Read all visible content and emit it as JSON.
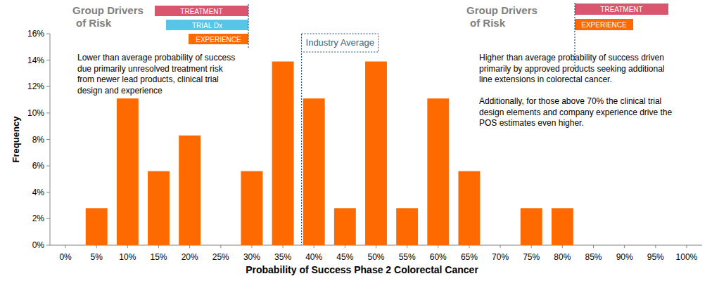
{
  "chart_data": {
    "type": "bar",
    "x_label": "Probability of Success Phase 2 Colorectal Cancer",
    "y_label": "Frequency",
    "x": [
      0,
      5,
      10,
      15,
      20,
      25,
      30,
      35,
      40,
      45,
      50,
      55,
      60,
      65,
      70,
      75,
      80,
      85,
      90,
      95,
      100
    ],
    "values": [
      0,
      2.8,
      11.1,
      5.6,
      8.3,
      0,
      5.6,
      13.9,
      11.1,
      2.8,
      13.9,
      2.8,
      11.1,
      5.6,
      0,
      2.8,
      2.8,
      0,
      0,
      0,
      0
    ],
    "color": "#ff6a00",
    "xlim": [
      -2.5,
      102.5
    ],
    "xticks": [
      {
        "value": 0,
        "label": "0%"
      },
      {
        "value": 5,
        "label": "5%"
      },
      {
        "value": 10,
        "label": "10%"
      },
      {
        "value": 15,
        "label": "15%"
      },
      {
        "value": 20,
        "label": "20%"
      },
      {
        "value": 25,
        "label": "25%"
      },
      {
        "value": 30,
        "label": "30%"
      },
      {
        "value": 35,
        "label": "35%"
      },
      {
        "value": 40,
        "label": "40%"
      },
      {
        "value": 45,
        "label": "45%"
      },
      {
        "value": 50,
        "label": "50%"
      },
      {
        "value": 55,
        "label": "55%"
      },
      {
        "value": 60,
        "label": "60%"
      },
      {
        "value": 65,
        "label": "65%"
      },
      {
        "value": 70,
        "label": "70%"
      },
      {
        "value": 75,
        "label": "75%"
      },
      {
        "value": 80,
        "label": "80%"
      },
      {
        "value": 85,
        "label": "85%"
      },
      {
        "value": 90,
        "label": "90%"
      },
      {
        "value": 95,
        "label": "95%"
      },
      {
        "value": 100,
        "label": "100%"
      }
    ],
    "ylim": [
      0,
      16
    ],
    "yticks": [
      {
        "value": 0,
        "label": "0%"
      },
      {
        "value": 2,
        "label": "2%"
      },
      {
        "value": 4,
        "label": "4%"
      },
      {
        "value": 6,
        "label": "6%"
      },
      {
        "value": 8,
        "label": "8%"
      },
      {
        "value": 10,
        "label": "10%"
      },
      {
        "value": 12,
        "label": "12%"
      },
      {
        "value": 14,
        "label": "14%"
      },
      {
        "value": 16,
        "label": "16%"
      }
    ],
    "grid": false,
    "industry_average": {
      "value": 38,
      "label": "Industry Average"
    },
    "risk_groups": [
      {
        "title_lines": [
          "Group Drivers",
          "of Risk"
        ],
        "drivers": [
          {
            "label": "TREATMENT",
            "color": "#d9566e"
          },
          {
            "label": "TRIAL Dx",
            "color": "#58c4e8"
          },
          {
            "label": "EXPERIENCE",
            "color": "#ff6a00"
          }
        ]
      },
      {
        "title_lines": [
          "Group Drivers",
          "of Risk"
        ],
        "drivers": [
          {
            "label": "TREATMENT",
            "color": "#d9566e"
          },
          {
            "label": "EXPERIENCE",
            "color": "#ff6a00"
          }
        ]
      }
    ],
    "annotations": [
      {
        "paragraphs": [
          [
            "Lower than average probability of success",
            "due primarily unresolved treatment risk",
            "from newer lead products, clinical trial",
            "design and experience"
          ]
        ]
      },
      {
        "paragraphs": [
          [
            "Higher than average probability of success driven",
            "primarily by approved products seeking additional",
            "line extensions in colorectal cancer."
          ],
          [
            "Additionally, for those above 70% the clinical trial",
            "design elements and company experience drive the",
            "POS estimates even higher."
          ]
        ]
      }
    ]
  }
}
